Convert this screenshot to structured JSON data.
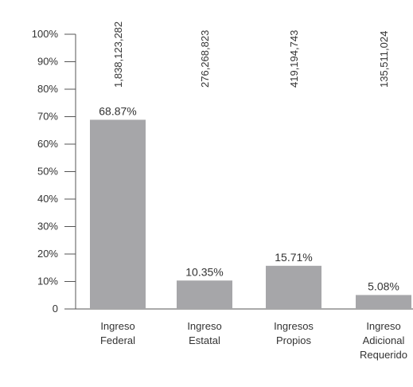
{
  "chart_data": {
    "type": "bar",
    "categories": [
      "Ingreso Federal",
      "Ingreso Estatal",
      "Ingresos Propios",
      "Ingreso Adicional Requerido"
    ],
    "values": [
      68.87,
      10.35,
      15.71,
      5.08
    ],
    "value_labels": [
      "68.87%",
      "10.35%",
      "15.71%",
      "5.08%"
    ],
    "annotations": [
      "1,838,123,282",
      "276,268,823",
      "419,194,743",
      "135,511,024"
    ],
    "color": "#a6a6a9",
    "ylim": [
      0,
      100
    ],
    "yticks": [
      0,
      {
        "value": 10,
        "label": "10%"
      },
      {
        "value": 20,
        "label": "20%"
      },
      {
        "value": 30,
        "label": "30%"
      },
      {
        "value": 40,
        "label": "40%"
      },
      {
        "value": 50,
        "label": "50%"
      },
      {
        "value": 60,
        "label": "60%"
      },
      {
        "value": 70,
        "label": "70%"
      },
      {
        "value": 80,
        "label": "80%"
      },
      {
        "value": 90,
        "label": "90%"
      },
      {
        "value": 100,
        "label": "100%"
      }
    ]
  }
}
